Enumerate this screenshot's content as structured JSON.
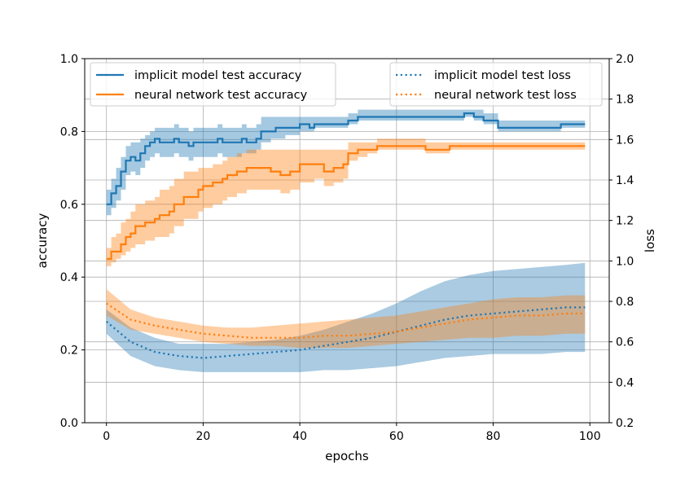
{
  "chart_data": {
    "type": "line",
    "title": "",
    "xlabel": "epochs",
    "ylabel": "accuracy",
    "y2label": "loss",
    "xlim": [
      -4.5,
      104
    ],
    "ylim": [
      0.0,
      1.0
    ],
    "y2lim": [
      0.2,
      2.0
    ],
    "grid": true,
    "x_ticks": [
      0,
      20,
      40,
      60,
      80,
      100
    ],
    "y_ticks": [
      0.0,
      0.2,
      0.4,
      0.6,
      0.8,
      1.0
    ],
    "y2_ticks": [
      0.2,
      0.4,
      0.6,
      0.8,
      1.0,
      1.2,
      1.4,
      1.6,
      1.8,
      2.0
    ],
    "x_tick_labels": [
      "0",
      "20",
      "40",
      "60",
      "80",
      "100"
    ],
    "y_tick_labels": [
      "0.0",
      "0.2",
      "0.4",
      "0.6",
      "0.8",
      "1.0"
    ],
    "y2_tick_labels": [
      "0.2",
      "0.4",
      "0.6",
      "0.8",
      "1.0",
      "1.2",
      "1.4",
      "1.6",
      "1.8",
      "2.0"
    ],
    "legend_left": [
      {
        "label": "implicit model test accuracy",
        "color": "#1f77b4",
        "style": "solid"
      },
      {
        "label": "neural network test accuracy",
        "color": "#ff7f0e",
        "style": "solid"
      }
    ],
    "legend_right": [
      {
        "label": "implicit model test loss",
        "color": "#1f77b4",
        "style": "dotted"
      },
      {
        "label": "neural network test loss",
        "color": "#ff7f0e",
        "style": "dotted"
      }
    ],
    "series": [
      {
        "name": "implicit model test accuracy",
        "axis": "left",
        "color": "#1f77b4",
        "style": "step",
        "x": [
          0,
          1,
          2,
          3,
          4,
          5,
          6,
          7,
          8,
          9,
          10,
          11,
          12,
          14,
          15,
          16,
          17,
          18,
          20,
          22,
          23,
          24,
          26,
          28,
          29,
          31,
          32,
          34,
          35,
          37,
          40,
          42,
          43,
          45,
          50,
          52,
          74,
          76,
          78,
          81,
          82,
          94,
          95,
          99
        ],
        "y": [
          0.6,
          0.63,
          0.65,
          0.69,
          0.72,
          0.73,
          0.72,
          0.74,
          0.76,
          0.77,
          0.78,
          0.77,
          0.77,
          0.78,
          0.77,
          0.77,
          0.76,
          0.77,
          0.77,
          0.77,
          0.78,
          0.77,
          0.77,
          0.78,
          0.77,
          0.78,
          0.8,
          0.8,
          0.81,
          0.81,
          0.82,
          0.81,
          0.82,
          0.82,
          0.83,
          0.84,
          0.85,
          0.84,
          0.83,
          0.81,
          0.81,
          0.82,
          0.82,
          0.82
        ],
        "band_upper": [
          0.64,
          0.67,
          0.7,
          0.73,
          0.76,
          0.77,
          0.77,
          0.78,
          0.79,
          0.8,
          0.81,
          0.81,
          0.81,
          0.82,
          0.81,
          0.81,
          0.8,
          0.81,
          0.81,
          0.81,
          0.82,
          0.81,
          0.81,
          0.82,
          0.81,
          0.82,
          0.84,
          0.84,
          0.84,
          0.84,
          0.84,
          0.84,
          0.84,
          0.84,
          0.85,
          0.86,
          0.86,
          0.86,
          0.85,
          0.83,
          0.83,
          0.83,
          0.83,
          0.83
        ],
        "band_lower": [
          0.57,
          0.59,
          0.61,
          0.64,
          0.68,
          0.69,
          0.68,
          0.7,
          0.72,
          0.73,
          0.74,
          0.73,
          0.73,
          0.74,
          0.73,
          0.73,
          0.72,
          0.73,
          0.73,
          0.73,
          0.74,
          0.73,
          0.73,
          0.74,
          0.74,
          0.75,
          0.77,
          0.78,
          0.78,
          0.79,
          0.8,
          0.8,
          0.81,
          0.81,
          0.82,
          0.83,
          0.84,
          0.83,
          0.82,
          0.8,
          0.8,
          0.81,
          0.81,
          0.81
        ]
      },
      {
        "name": "neural network test accuracy",
        "axis": "left",
        "color": "#ff7f0e",
        "style": "step",
        "x": [
          0,
          1,
          2,
          3,
          4,
          5,
          6,
          8,
          10,
          11,
          13,
          14,
          16,
          19,
          20,
          22,
          24,
          25,
          27,
          29,
          30,
          34,
          36,
          38,
          40,
          43,
          45,
          47,
          49,
          50,
          52,
          54,
          56,
          62,
          66,
          71,
          99
        ],
        "y": [
          0.45,
          0.47,
          0.47,
          0.49,
          0.51,
          0.52,
          0.54,
          0.55,
          0.56,
          0.57,
          0.58,
          0.6,
          0.62,
          0.64,
          0.65,
          0.66,
          0.67,
          0.68,
          0.69,
          0.7,
          0.7,
          0.69,
          0.68,
          0.69,
          0.71,
          0.71,
          0.69,
          0.7,
          0.71,
          0.74,
          0.75,
          0.75,
          0.76,
          0.76,
          0.75,
          0.76,
          0.76
        ],
        "band_upper": [
          0.48,
          0.51,
          0.52,
          0.55,
          0.56,
          0.58,
          0.6,
          0.61,
          0.62,
          0.64,
          0.65,
          0.67,
          0.69,
          0.7,
          0.7,
          0.71,
          0.72,
          0.73,
          0.74,
          0.75,
          0.75,
          0.75,
          0.75,
          0.75,
          0.75,
          0.75,
          0.75,
          0.75,
          0.75,
          0.77,
          0.77,
          0.77,
          0.78,
          0.78,
          0.77,
          0.77,
          0.77
        ],
        "band_lower": [
          0.43,
          0.44,
          0.45,
          0.46,
          0.47,
          0.48,
          0.49,
          0.5,
          0.51,
          0.51,
          0.52,
          0.54,
          0.56,
          0.58,
          0.59,
          0.6,
          0.61,
          0.62,
          0.63,
          0.64,
          0.64,
          0.64,
          0.63,
          0.64,
          0.66,
          0.67,
          0.65,
          0.66,
          0.67,
          0.72,
          0.73,
          0.74,
          0.75,
          0.75,
          0.74,
          0.75,
          0.75
        ]
      },
      {
        "name": "implicit model test loss",
        "axis": "right",
        "color": "#1f77b4",
        "style": "dotted",
        "x": [
          0,
          5,
          10,
          15,
          20,
          25,
          30,
          35,
          40,
          45,
          50,
          55,
          60,
          65,
          70,
          75,
          80,
          85,
          90,
          95,
          99
        ],
        "y": [
          0.7,
          0.6,
          0.55,
          0.53,
          0.52,
          0.53,
          0.54,
          0.55,
          0.56,
          0.58,
          0.6,
          0.62,
          0.65,
          0.68,
          0.71,
          0.73,
          0.74,
          0.75,
          0.76,
          0.77,
          0.77
        ],
        "band_upper": [
          0.76,
          0.67,
          0.62,
          0.59,
          0.59,
          0.59,
          0.6,
          0.61,
          0.63,
          0.66,
          0.7,
          0.74,
          0.79,
          0.85,
          0.9,
          0.93,
          0.95,
          0.96,
          0.97,
          0.98,
          0.99
        ],
        "band_lower": [
          0.64,
          0.53,
          0.48,
          0.46,
          0.45,
          0.45,
          0.45,
          0.45,
          0.45,
          0.46,
          0.46,
          0.47,
          0.48,
          0.5,
          0.52,
          0.53,
          0.54,
          0.54,
          0.54,
          0.55,
          0.55
        ]
      },
      {
        "name": "neural network test loss",
        "axis": "right",
        "color": "#ff7f0e",
        "style": "dotted",
        "x": [
          0,
          5,
          10,
          15,
          20,
          25,
          30,
          35,
          40,
          45,
          50,
          55,
          60,
          65,
          70,
          75,
          80,
          85,
          90,
          95,
          99
        ],
        "y": [
          0.79,
          0.71,
          0.68,
          0.66,
          0.64,
          0.63,
          0.62,
          0.62,
          0.62,
          0.63,
          0.63,
          0.64,
          0.65,
          0.67,
          0.69,
          0.71,
          0.72,
          0.73,
          0.73,
          0.74,
          0.74
        ],
        "band_upper": [
          0.86,
          0.76,
          0.72,
          0.7,
          0.68,
          0.67,
          0.67,
          0.68,
          0.69,
          0.7,
          0.71,
          0.72,
          0.73,
          0.75,
          0.77,
          0.79,
          0.81,
          0.82,
          0.82,
          0.83,
          0.83
        ],
        "band_lower": [
          0.73,
          0.66,
          0.64,
          0.62,
          0.6,
          0.59,
          0.58,
          0.58,
          0.57,
          0.57,
          0.57,
          0.58,
          0.59,
          0.6,
          0.61,
          0.62,
          0.62,
          0.63,
          0.63,
          0.64,
          0.64
        ]
      }
    ]
  }
}
